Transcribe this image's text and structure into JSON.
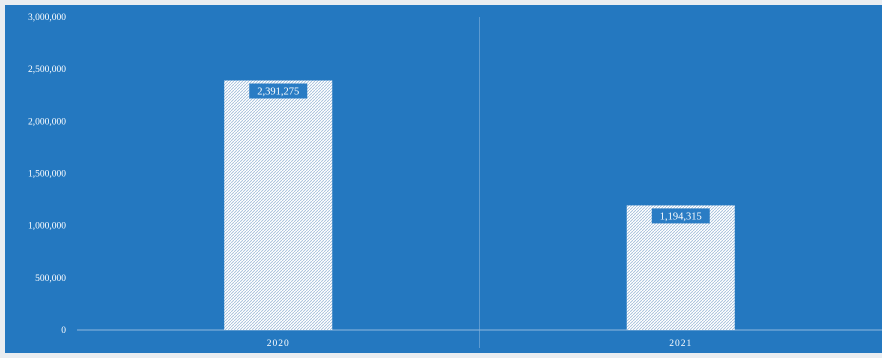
{
  "chart_data": {
    "type": "bar",
    "title": "",
    "xlabel": "",
    "ylabel": "",
    "categories": [
      "2020",
      "2021"
    ],
    "values": [
      2391275,
      1194315
    ],
    "value_labels": [
      "2,391,275",
      "1,194,315"
    ],
    "ylim": [
      0,
      3000000
    ],
    "yticks": [
      0,
      500000,
      1000000,
      1500000,
      2000000,
      2500000,
      3000000
    ],
    "ytick_labels": [
      "0",
      "500,000",
      "1,000,000",
      "1,500,000",
      "2,000,000",
      "2,500,000",
      "3,000,000"
    ],
    "grid": false,
    "legend": "none",
    "colors": {
      "background": "#2478c0",
      "outer": "#e9edf1",
      "bar_fill": "#ffffff",
      "bar_hatch": "#9fbbd8",
      "label_box": "#2a7cc4",
      "text": "#ffffff",
      "separator": "#5c9ad0",
      "axis": "#8fb8de"
    }
  }
}
